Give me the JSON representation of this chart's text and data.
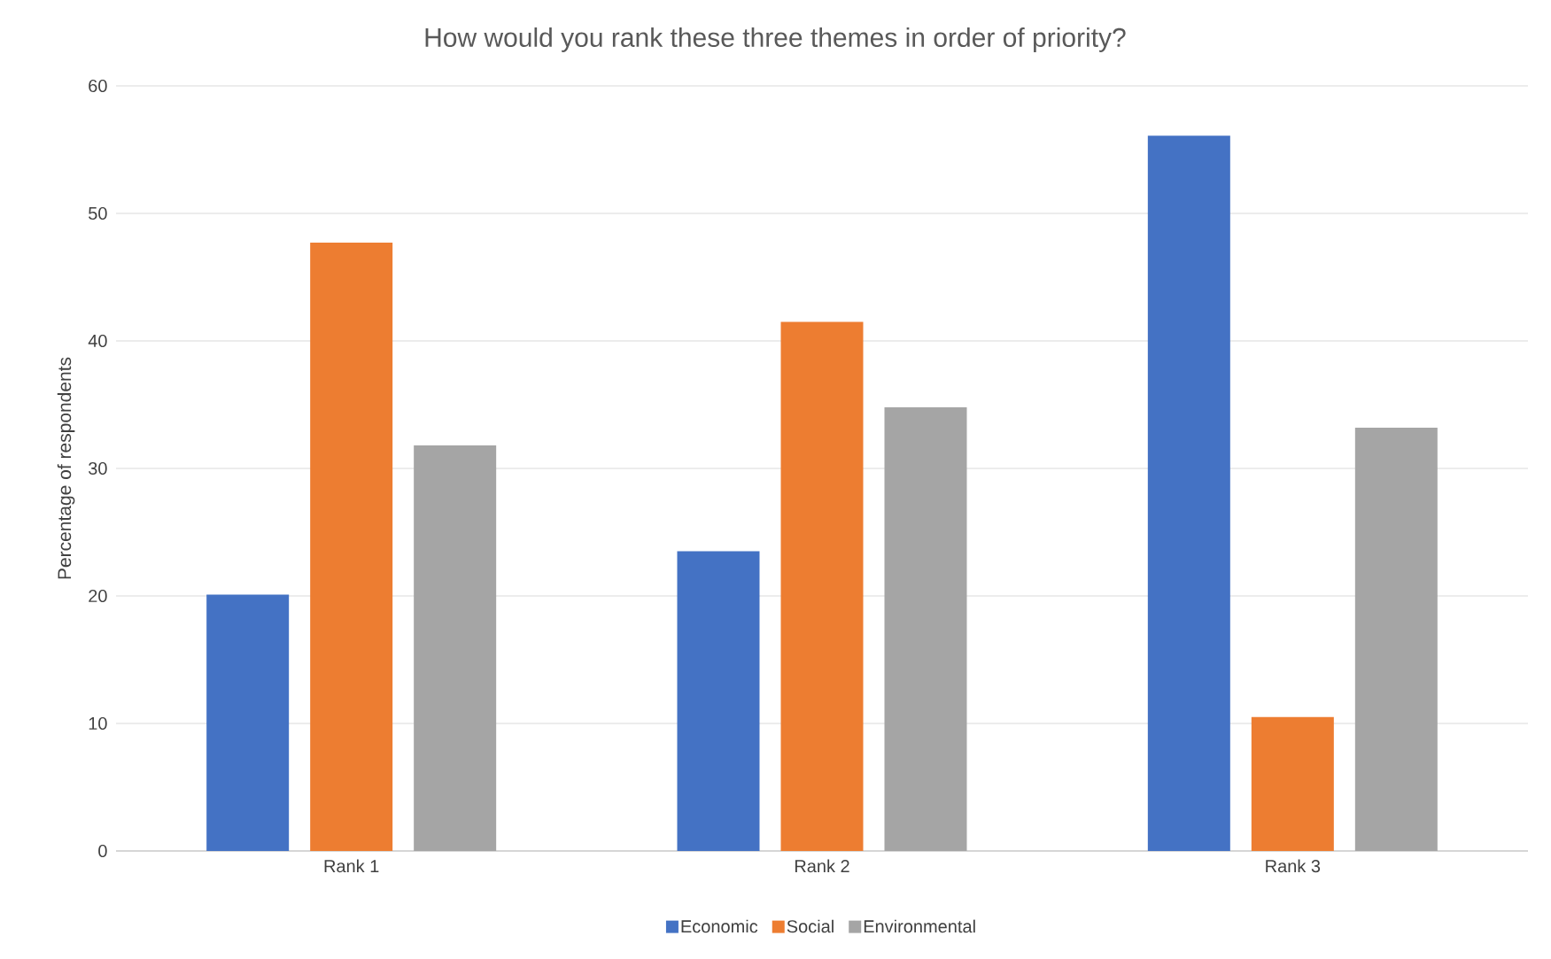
{
  "chart_data": {
    "type": "bar",
    "title": "How would you rank these three themes in order of priority?",
    "ylabel": "Percentage of respondents",
    "categories": [
      "Rank 1",
      "Rank 2",
      "Rank 3"
    ],
    "series": [
      {
        "name": "Economic",
        "color": "#4472c4",
        "values": [
          20.1,
          23.5,
          56.1
        ]
      },
      {
        "name": "Social",
        "color": "#ed7d31",
        "values": [
          47.7,
          41.5,
          10.5
        ]
      },
      {
        "name": "Environmental",
        "color": "#a5a5a5",
        "values": [
          31.8,
          34.8,
          33.2
        ]
      }
    ],
    "ylim": [
      0,
      60
    ],
    "yticks": [
      0,
      10,
      20,
      30,
      40,
      50,
      60
    ],
    "grid": "y",
    "legend": "bottom"
  }
}
